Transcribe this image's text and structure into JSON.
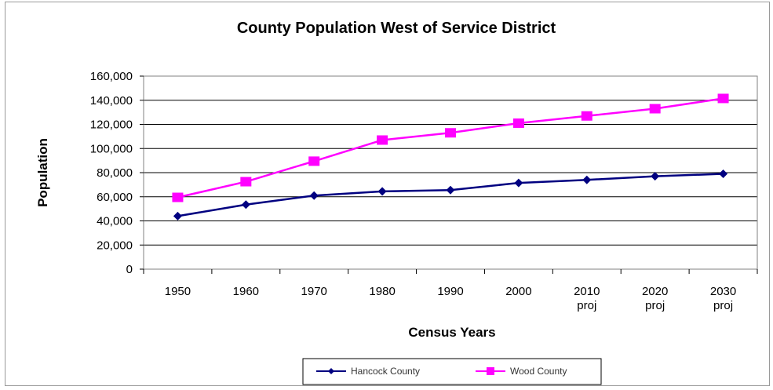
{
  "chart_data": {
    "type": "line",
    "title": "County Population West of Service District",
    "xlabel": "Census Years",
    "ylabel": "Population",
    "categories": [
      [
        "1950"
      ],
      [
        "1960"
      ],
      [
        "1970"
      ],
      [
        "1980"
      ],
      [
        "1990"
      ],
      [
        "2000"
      ],
      [
        "2010",
        "proj"
      ],
      [
        "2020",
        "proj"
      ],
      [
        "2030",
        "proj"
      ]
    ],
    "ylim": [
      0,
      160000
    ],
    "yticks": [
      "0",
      "20,000",
      "40,000",
      "60,000",
      "80,000",
      "100,000",
      "120,000",
      "140,000",
      "160,000"
    ],
    "ytick_values": [
      0,
      20000,
      40000,
      60000,
      80000,
      100000,
      120000,
      140000,
      160000
    ],
    "grid": true,
    "legend_position": "bottom",
    "series": [
      {
        "name": "Hancock County",
        "color": "#000080",
        "marker": "diamond",
        "values": [
          44000,
          53500,
          61000,
          64500,
          65500,
          71500,
          74000,
          77000,
          79000
        ]
      },
      {
        "name": "Wood County",
        "color": "#ff00ff",
        "marker": "square",
        "values": [
          59500,
          72500,
          89500,
          107000,
          113000,
          121000,
          127000,
          133000,
          141500
        ]
      }
    ]
  }
}
